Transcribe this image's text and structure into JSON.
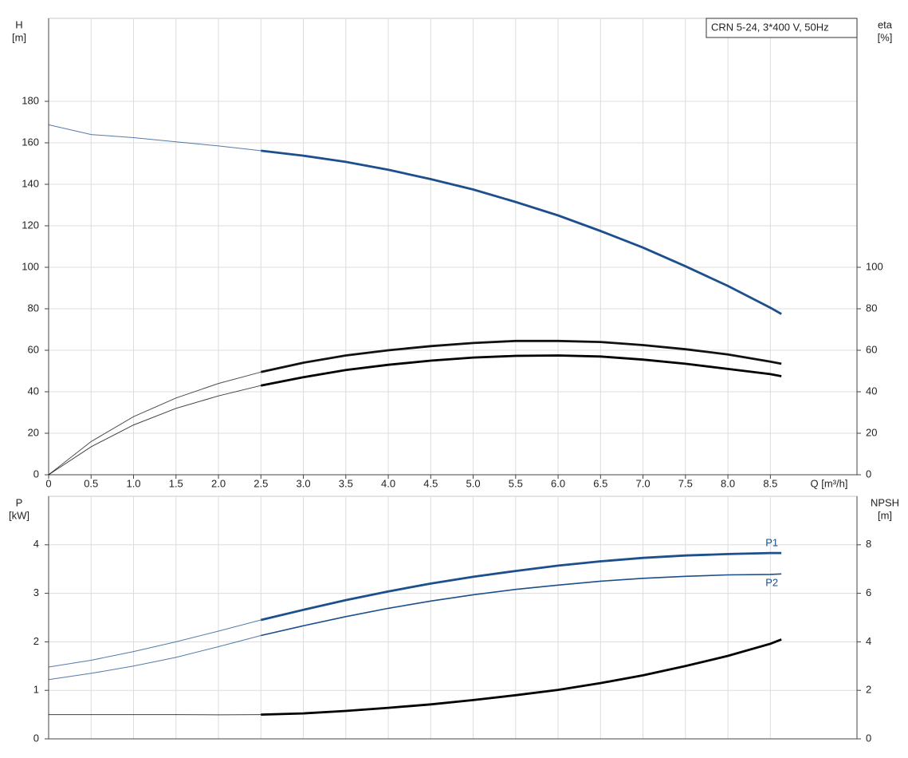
{
  "chart_data": [
    {
      "type": "line",
      "annotation": "CRN 5-24, 3*400 V, 50Hz",
      "ylabel": "H",
      "yunit": "[m]",
      "y2label": "eta",
      "y2unit": "[%]",
      "xlabel": "Q [m³/h]",
      "xlim": [
        0,
        9.52
      ],
      "xticks": [
        0,
        0.5,
        {
          "value": 1,
          "label": "1.0"
        },
        1.5,
        {
          "value": 2,
          "label": "2.0"
        },
        2.5,
        {
          "value": 3,
          "label": "3.0"
        },
        3.5,
        {
          "value": 4,
          "label": "4.0"
        },
        4.5,
        {
          "value": 5,
          "label": "5.0"
        },
        5.5,
        {
          "value": 6,
          "label": "6.0"
        },
        6.5,
        {
          "value": 7,
          "label": "7.0"
        },
        7.5,
        {
          "value": 8,
          "label": "8.0"
        },
        8.5
      ],
      "ylim": [
        0,
        220
      ],
      "yticks": [
        0,
        20,
        40,
        60,
        80,
        100,
        120,
        140,
        160,
        180
      ],
      "y2lim": [
        0,
        220
      ],
      "y2ticks": [
        0,
        20,
        40,
        60,
        80,
        100
      ],
      "grid": true,
      "operating_range": [
        2.5,
        8.63
      ],
      "x": [
        0,
        0.5,
        1,
        1.5,
        2,
        2.5,
        3,
        3.5,
        4,
        4.5,
        5,
        5.5,
        6,
        6.5,
        7,
        7.5,
        8,
        8.5,
        8.63
      ],
      "series": [
        {
          "color": "#1c4f8c",
          "values": [
            168.7,
            164,
            162.5,
            160.5,
            158.5,
            156.2,
            153.8,
            150.8,
            147,
            142.5,
            137.5,
            131.5,
            125,
            117.5,
            109.5,
            100.5,
            91,
            80.5,
            77.5
          ]
        },
        {
          "color": "#111111",
          "axis": "y2",
          "values": [
            0,
            16,
            28,
            37,
            44,
            49.5,
            54,
            57.5,
            60,
            62,
            63.5,
            64.5,
            64.5,
            64,
            62.5,
            60.5,
            58,
            54.5,
            53.5
          ]
        },
        {
          "color": "#000000",
          "axis": "y2",
          "values": [
            0,
            13.5,
            24,
            32,
            38,
            43,
            47,
            50.5,
            53,
            55,
            56.5,
            57.3,
            57.5,
            57,
            55.5,
            53.5,
            51,
            48.5,
            47.5
          ]
        }
      ]
    },
    {
      "type": "line",
      "ylabel": "P",
      "yunit": "[kW]",
      "y2label": "NPSH",
      "y2unit": "[m]",
      "xlim": [
        0,
        9.52
      ],
      "ylim": [
        0,
        5
      ],
      "yticks": [
        0,
        1,
        2,
        3,
        4
      ],
      "y2lim": [
        0,
        10
      ],
      "y2ticks": [
        0,
        2,
        4,
        6,
        8
      ],
      "grid": true,
      "operating_range": [
        2.5,
        8.63
      ],
      "x": [
        0,
        0.5,
        1,
        1.5,
        2,
        2.5,
        3,
        3.5,
        4,
        4.5,
        5,
        5.5,
        6,
        6.5,
        7,
        7.5,
        8,
        8.5,
        8.63
      ],
      "series": [
        {
          "name": "P1",
          "color": "#1c4f8c",
          "values": [
            1.48,
            1.62,
            1.8,
            2,
            2.22,
            2.45,
            2.66,
            2.86,
            3.04,
            3.2,
            3.34,
            3.46,
            3.57,
            3.66,
            3.73,
            3.78,
            3.81,
            3.83,
            3.83
          ]
        },
        {
          "name": "P2",
          "color": "#1c4f8c",
          "values": [
            1.22,
            1.35,
            1.5,
            1.68,
            1.9,
            2.13,
            2.33,
            2.52,
            2.69,
            2.84,
            2.97,
            3.08,
            3.17,
            3.25,
            3.31,
            3.35,
            3.38,
            3.39,
            3.4
          ]
        },
        {
          "color": "#000000",
          "axis": "y2",
          "values": [
            1,
            1,
            1,
            1,
            0.99,
            1,
            1.05,
            1.15,
            1.28,
            1.42,
            1.6,
            1.8,
            2.02,
            2.3,
            2.62,
            3,
            3.42,
            3.92,
            4.1
          ]
        }
      ]
    }
  ]
}
